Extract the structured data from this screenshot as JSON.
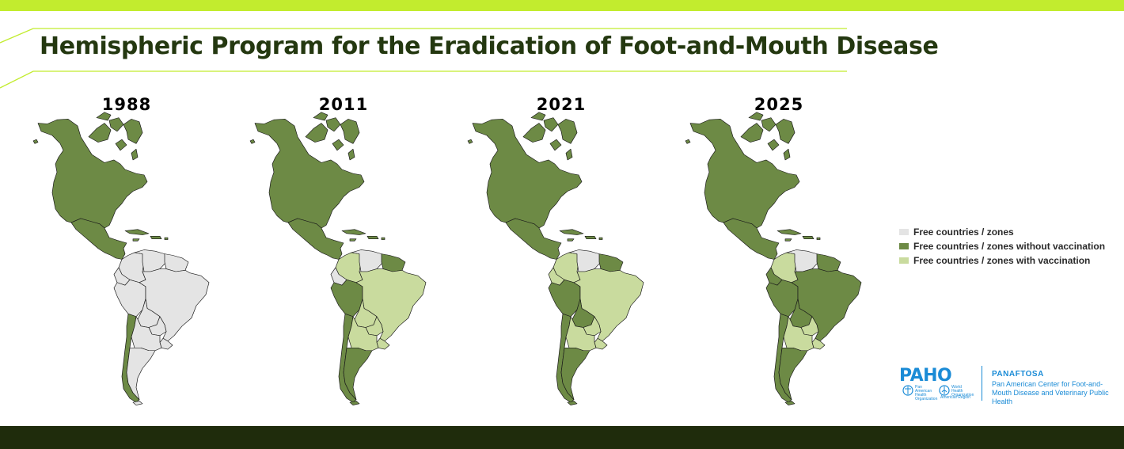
{
  "title": "Hemispheric Program for the Eradication of Foot-and-Mouth Disease",
  "colors": {
    "accent_lime": "#c2ec2e",
    "dark_green": "#1f2c0c",
    "title_text": "#243810",
    "free_countries": "#e4e4e4",
    "free_without_vaccination": "#6d8a45",
    "free_with_vaccination": "#c9db9e",
    "paho_blue": "#1a8bd6"
  },
  "legend": [
    {
      "label": "Free countries / zones",
      "status": "free_countries"
    },
    {
      "label": "Free countries / zones without vaccination",
      "status": "free_without_vaccination"
    },
    {
      "label": "Free countries / zones with vaccination",
      "status": "free_with_vaccination"
    }
  ],
  "maps": [
    {
      "year": "1988",
      "status": {
        "north_america": "free_without_vaccination",
        "central_america": "free_without_vaccination",
        "caribbean": "free_without_vaccination",
        "colombia": "free_countries",
        "venezuela": "free_countries",
        "guianas": "free_countries",
        "ecuador": "free_countries",
        "peru": "free_countries",
        "brazil": "free_countries",
        "bolivia": "free_countries",
        "paraguay": "free_countries",
        "uruguay": "free_countries",
        "chile": "free_without_vaccination",
        "argentina_north": "free_countries",
        "argentina_south": "free_countries"
      }
    },
    {
      "year": "2011",
      "status": {
        "north_america": "free_without_vaccination",
        "central_america": "free_without_vaccination",
        "caribbean": "free_without_vaccination",
        "colombia": "free_with_vaccination",
        "venezuela": "free_countries",
        "guianas": "free_without_vaccination",
        "ecuador": "free_countries",
        "peru": "free_without_vaccination",
        "brazil": "free_with_vaccination",
        "bolivia": "free_with_vaccination",
        "paraguay": "free_with_vaccination",
        "uruguay": "free_with_vaccination",
        "chile": "free_without_vaccination",
        "argentina_north": "free_with_vaccination",
        "argentina_south": "free_without_vaccination"
      }
    },
    {
      "year": "2021",
      "status": {
        "north_america": "free_without_vaccination",
        "central_america": "free_without_vaccination",
        "caribbean": "free_without_vaccination",
        "colombia": "free_with_vaccination",
        "venezuela": "free_countries",
        "guianas": "free_without_vaccination",
        "ecuador": "free_with_vaccination",
        "peru": "free_without_vaccination",
        "brazil": "free_with_vaccination",
        "bolivia": "free_without_vaccination",
        "paraguay": "free_with_vaccination",
        "uruguay": "free_with_vaccination",
        "chile": "free_without_vaccination",
        "argentina_north": "free_with_vaccination",
        "argentina_south": "free_without_vaccination"
      }
    },
    {
      "year": "2025",
      "status": {
        "north_america": "free_without_vaccination",
        "central_america": "free_without_vaccination",
        "caribbean": "free_without_vaccination",
        "colombia": "free_with_vaccination",
        "venezuela": "free_countries",
        "guianas": "free_without_vaccination",
        "ecuador": "free_without_vaccination",
        "peru": "free_without_vaccination",
        "brazil": "free_without_vaccination",
        "bolivia": "free_without_vaccination",
        "paraguay": "free_with_vaccination",
        "uruguay": "free_with_vaccination",
        "chile": "free_without_vaccination",
        "argentina_north": "free_with_vaccination",
        "argentina_south": "free_without_vaccination"
      }
    }
  ],
  "logo": {
    "paho": "PAHO",
    "paho_caption": "Pan American Health Organization",
    "who_caption": "World Health Organization",
    "region_caption": "Americas Region",
    "panaftosa": "PANAFTOSA",
    "center_name": "Pan American Center for Foot-and-Mouth Disease and Veterinary Public Health"
  }
}
